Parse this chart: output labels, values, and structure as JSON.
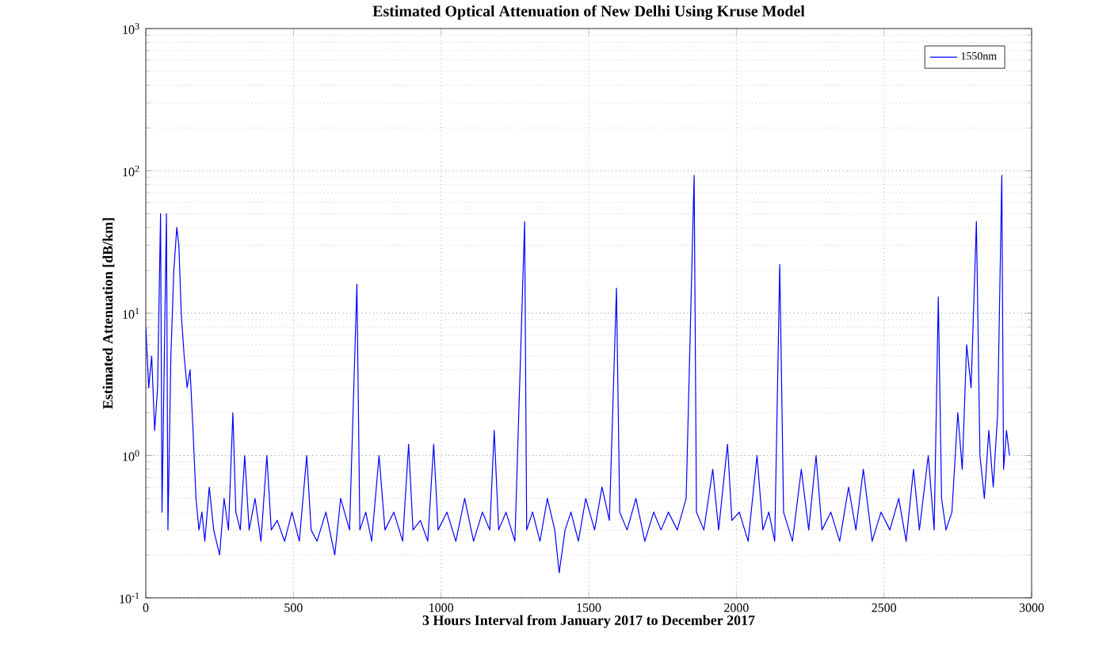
{
  "chart_data": {
    "type": "line",
    "title": "Estimated Optical Attenuation of New Delhi Using Kruse Model",
    "xlabel": "3 Hours Interval from January 2017 to December 2017",
    "ylabel": "Estimated Attenuation [dB/km]",
    "log": "y",
    "grid": true,
    "legend": "top right",
    "xlim": [
      0,
      3000
    ],
    "xticks": [
      0,
      500,
      1000,
      1500,
      2000,
      2500,
      3000
    ],
    "ylim": [
      0.1,
      1000
    ],
    "yticks": [
      {
        "value": 0.1,
        "label": "10$^{-1}$"
      },
      {
        "value": 1,
        "label": "10$^{0}$"
      },
      {
        "value": 10,
        "label": "10$^{1}$"
      },
      {
        "value": 100,
        "label": "10$^{2}$"
      },
      {
        "value": 1000,
        "label": "10$^{3}$"
      }
    ],
    "x": [
      0,
      10,
      20,
      30,
      40,
      50,
      55,
      60,
      70,
      75,
      85,
      95,
      105,
      112,
      120,
      130,
      140,
      150,
      160,
      170,
      180,
      190,
      200,
      215,
      230,
      250,
      265,
      280,
      295,
      305,
      320,
      335,
      350,
      370,
      390,
      410,
      425,
      445,
      470,
      495,
      520,
      545,
      560,
      580,
      610,
      640,
      660,
      690,
      715,
      725,
      745,
      765,
      790,
      810,
      840,
      870,
      890,
      905,
      930,
      955,
      975,
      990,
      1020,
      1050,
      1080,
      1110,
      1140,
      1165,
      1180,
      1195,
      1220,
      1250,
      1283,
      1290,
      1310,
      1335,
      1360,
      1385,
      1400,
      1420,
      1440,
      1465,
      1490,
      1520,
      1545,
      1570,
      1594,
      1605,
      1630,
      1660,
      1690,
      1720,
      1745,
      1770,
      1800,
      1830,
      1857,
      1865,
      1890,
      1920,
      1940,
      1970,
      1985,
      2010,
      2040,
      2070,
      2090,
      2110,
      2130,
      2147,
      2160,
      2190,
      2220,
      2245,
      2270,
      2290,
      2320,
      2350,
      2380,
      2405,
      2430,
      2460,
      2490,
      2520,
      2550,
      2575,
      2600,
      2620,
      2650,
      2670,
      2684,
      2695,
      2710,
      2730,
      2750,
      2765,
      2780,
      2795,
      2813,
      2825,
      2840,
      2855,
      2870,
      2885,
      2899,
      2905,
      2915,
      2925
    ],
    "series": [
      {
        "name": "1550nm",
        "color": "#0000ff",
        "values": [
          8,
          3,
          5,
          1.5,
          3,
          50,
          0.4,
          2,
          50,
          0.3,
          5,
          20,
          40,
          30,
          10,
          5,
          3,
          4,
          1.5,
          0.5,
          0.3,
          0.4,
          0.25,
          0.6,
          0.3,
          0.2,
          0.5,
          0.3,
          2,
          0.4,
          0.3,
          1,
          0.3,
          0.5,
          0.25,
          1,
          0.3,
          0.35,
          0.25,
          0.4,
          0.25,
          1,
          0.3,
          0.25,
          0.4,
          0.2,
          0.5,
          0.3,
          16,
          0.3,
          0.4,
          0.25,
          1,
          0.3,
          0.4,
          0.25,
          1.2,
          0.3,
          0.35,
          0.25,
          1.2,
          0.3,
          0.4,
          0.25,
          0.5,
          0.25,
          0.4,
          0.3,
          1.5,
          0.3,
          0.4,
          0.25,
          44,
          0.3,
          0.4,
          0.25,
          0.5,
          0.3,
          0.15,
          0.3,
          0.4,
          0.25,
          0.5,
          0.3,
          0.6,
          0.35,
          15,
          0.4,
          0.3,
          0.5,
          0.25,
          0.4,
          0.3,
          0.4,
          0.3,
          0.5,
          93,
          0.4,
          0.3,
          0.8,
          0.3,
          1.2,
          0.35,
          0.4,
          0.25,
          1,
          0.3,
          0.4,
          0.25,
          22,
          0.4,
          0.25,
          0.8,
          0.3,
          1,
          0.3,
          0.4,
          0.25,
          0.6,
          0.3,
          0.8,
          0.25,
          0.4,
          0.3,
          0.5,
          0.25,
          0.8,
          0.3,
          1,
          0.3,
          13,
          0.5,
          0.3,
          0.4,
          2,
          0.8,
          6,
          3,
          44,
          1,
          0.5,
          1.5,
          0.6,
          2,
          93,
          0.8,
          1.5,
          1
        ]
      }
    ]
  }
}
